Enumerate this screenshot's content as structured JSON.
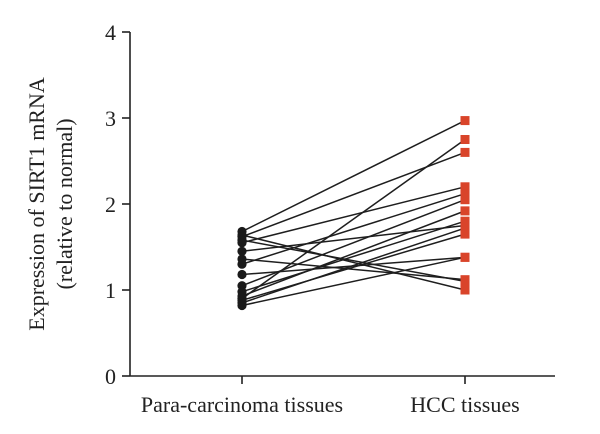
{
  "chart_data": {
    "type": "scatter",
    "subtype": "paired",
    "ylabel_line1": "Expression of SIRT1 mRNA",
    "ylabel_line2": "(relative to normal)",
    "ylim": [
      0,
      4
    ],
    "yticks": [
      0,
      1,
      2,
      3,
      4
    ],
    "categories": [
      "Para-carcinoma tissues",
      "HCC tissues"
    ],
    "marker_colors": {
      "para": "#1a1a1a",
      "hcc": "#d9442a"
    },
    "marker_shapes": {
      "para": "circle",
      "hcc": "square"
    },
    "pairs": [
      {
        "para": 1.68,
        "hcc": 2.97
      },
      {
        "para": 1.64,
        "hcc": 1.0
      },
      {
        "para": 1.62,
        "hcc": 2.6
      },
      {
        "para": 1.58,
        "hcc": 1.1
      },
      {
        "para": 1.55,
        "hcc": 2.2
      },
      {
        "para": 1.45,
        "hcc": 1.75
      },
      {
        "para": 1.36,
        "hcc": 1.12
      },
      {
        "para": 1.3,
        "hcc": 2.12
      },
      {
        "para": 1.18,
        "hcc": 1.38
      },
      {
        "para": 1.05,
        "hcc": 2.05
      },
      {
        "para": 0.98,
        "hcc": 1.8
      },
      {
        "para": 0.93,
        "hcc": 1.92
      },
      {
        "para": 0.9,
        "hcc": 2.75
      },
      {
        "para": 0.88,
        "hcc": 1.65
      },
      {
        "para": 0.85,
        "hcc": 1.72
      },
      {
        "para": 0.82,
        "hcc": 1.38
      }
    ]
  }
}
